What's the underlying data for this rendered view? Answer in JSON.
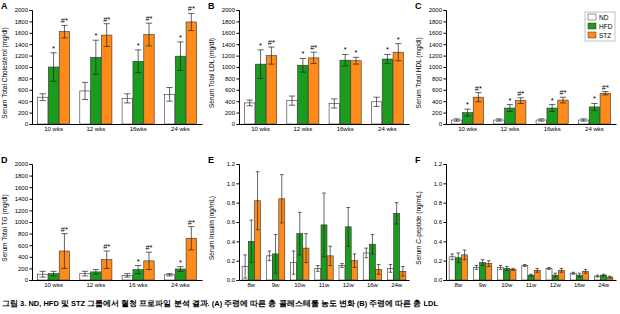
{
  "chart_data": [
    {
      "type": "bar",
      "title": "A",
      "y_label": "Serum Total Cholesterol (mg/dl)",
      "categories": [
        "10 wks",
        "12 wks",
        "16wks",
        "24 wks"
      ],
      "series": [
        {
          "color": "#ffffff",
          "values": [
            470,
            580,
            450,
            520
          ],
          "errors": [
            60,
            150,
            80,
            120
          ]
        },
        {
          "color": "#1c9c1c",
          "values": [
            1000,
            1170,
            1100,
            1190
          ],
          "errors": [
            250,
            300,
            200,
            250
          ],
          "annotations": [
            "*",
            "*",
            "*",
            "*"
          ]
        },
        {
          "color": "#ff8c1a",
          "values": [
            1620,
            1560,
            1570,
            1790
          ],
          "errors": [
            110,
            200,
            200,
            150
          ],
          "annotations": [
            "#*",
            "#*",
            "#*",
            "#*"
          ]
        }
      ],
      "ylim": [
        0,
        2000
      ],
      "yticks": [
        0,
        200,
        400,
        600,
        800,
        1000,
        1200,
        1400,
        1600,
        1800,
        2000
      ]
    },
    {
      "type": "bar",
      "title": "B",
      "y_label": "Serum Total LDL (mg/dl)",
      "categories": [
        "10 wks",
        "12 wks",
        "16wks",
        "24 wks"
      ],
      "series": [
        {
          "color": "#ffffff",
          "values": [
            370,
            410,
            360,
            390
          ],
          "errors": [
            50,
            80,
            80,
            80
          ]
        },
        {
          "color": "#1c9c1c",
          "values": [
            1050,
            1030,
            1120,
            1140
          ],
          "errors": [
            250,
            120,
            100,
            80
          ],
          "annotations": [
            "*",
            "*",
            "*",
            "*"
          ]
        },
        {
          "color": "#ff8c1a",
          "values": [
            1200,
            1160,
            1110,
            1260
          ],
          "errors": [
            150,
            100,
            60,
            150
          ],
          "annotations": [
            "#*",
            "#*",
            "*",
            "*"
          ]
        }
      ],
      "ylim": [
        0,
        2000
      ],
      "yticks": [
        0,
        200,
        400,
        600,
        800,
        1000,
        1200,
        1400,
        1600,
        1800,
        2000
      ]
    },
    {
      "type": "bar",
      "title": "C",
      "y_label": "Serum Total HDL (mg/dl)",
      "categories": [
        "10 wks",
        "12 wks",
        "16wks",
        "24 wks"
      ],
      "series": [
        {
          "name": "ND",
          "color": "#ffffff",
          "values": [
            70,
            70,
            70,
            70
          ],
          "errors": [
            20,
            20,
            20,
            20
          ]
        },
        {
          "name": "HFD",
          "color": "#1c9c1c",
          "values": [
            200,
            280,
            280,
            300
          ],
          "errors": [
            60,
            60,
            60,
            60
          ],
          "annotations": [
            "*",
            "*",
            "*",
            "*"
          ]
        },
        {
          "name": "STZ",
          "color": "#ff8c1a",
          "values": [
            470,
            410,
            420,
            540
          ],
          "errors": [
            80,
            50,
            50,
            30
          ],
          "annotations": [
            "#*",
            "#*",
            "#*",
            "#*"
          ]
        }
      ],
      "ylim": [
        0,
        2000
      ],
      "yticks": [
        0,
        200,
        400,
        600,
        800,
        1000,
        1200,
        1400,
        1600,
        1800,
        2000
      ],
      "legend": "upper right"
    },
    {
      "type": "bar",
      "title": "D",
      "y_label": "Serum Total TG (mg/dl)",
      "categories": [
        "10 wks",
        "12 wks",
        "16 wks",
        "24 wks"
      ],
      "series": [
        {
          "color": "#ffffff",
          "values": [
            100,
            110,
            80,
            90
          ],
          "errors": [
            50,
            40,
            30,
            20
          ]
        },
        {
          "color": "#1c9c1c",
          "values": [
            110,
            140,
            180,
            190
          ],
          "errors": [
            40,
            40,
            70,
            40
          ],
          "annotations": [
            null,
            null,
            "*",
            "*"
          ]
        },
        {
          "color": "#ff8c1a",
          "values": [
            500,
            350,
            330,
            720
          ],
          "errors": [
            300,
            150,
            150,
            200
          ],
          "annotations": [
            "#*",
            "#*",
            "#*",
            "#*"
          ]
        }
      ],
      "ylim": [
        0,
        2000
      ],
      "yticks": [
        0,
        200,
        400,
        600,
        800,
        1000,
        1200,
        1400,
        1600,
        1800,
        2000
      ]
    },
    {
      "type": "bar",
      "title": "E",
      "y_label": "Serum Insulin (ng/mL)",
      "categories": [
        "8w",
        "9w",
        "10w",
        "11w",
        "12w",
        "16w",
        "24w"
      ],
      "series": [
        {
          "color": "#ffffff",
          "values": [
            0.14,
            0.25,
            0.18,
            0.12,
            0.15,
            0.28,
            0.12
          ],
          "errors": [
            0.12,
            0.05,
            0.12,
            0.03,
            0.02,
            0.05,
            0.04
          ]
        },
        {
          "color": "#1c9c1c",
          "values": [
            0.4,
            0.27,
            0.48,
            0.57,
            0.55,
            0.37,
            0.69
          ],
          "errors": [
            0.22,
            0.2,
            0.22,
            0.33,
            0.2,
            0.1,
            0.11
          ]
        },
        {
          "color": "#ff8c1a",
          "values": [
            0.82,
            0.84,
            0.33,
            0.25,
            0.2,
            0.11,
            0.09
          ],
          "errors": [
            0.3,
            0.25,
            0.15,
            0.1,
            0.07,
            0.05,
            0.05
          ]
        }
      ],
      "ylim": [
        0,
        1.2
      ],
      "yticks": [
        {
          "value": 0,
          "label": "0.0"
        },
        {
          "value": 0.2,
          "label": "0.2"
        },
        {
          "value": 0.4,
          "label": "0.4"
        },
        {
          "value": 0.6,
          "label": "0.6"
        },
        {
          "value": 0.8,
          "label": "0.8"
        },
        {
          "value": 1,
          "label": "1.0"
        },
        {
          "value": 1.2,
          "label": "1.2"
        }
      ]
    },
    {
      "type": "bar",
      "title": "F",
      "y_label": "Serum C-peptide (ng/mL)",
      "categories": [
        "8w",
        "9w",
        "10w",
        "11w",
        "12w",
        "16w",
        "24w"
      ],
      "series": [
        {
          "color": "#ffffff",
          "values": [
            0.24,
            0.13,
            0.13,
            0.15,
            0.12,
            0.07,
            0.04
          ],
          "errors": [
            0.03,
            0.02,
            0.02,
            0.01,
            0.01,
            0.01,
            0.01
          ]
        },
        {
          "color": "#1c9c1c",
          "values": [
            0.23,
            0.18,
            0.12,
            0.05,
            0.05,
            0.05,
            0.05
          ],
          "errors": [
            0.05,
            0.03,
            0.02,
            0.01,
            0.02,
            0.02,
            0.01
          ]
        },
        {
          "color": "#ff8c1a",
          "values": [
            0.26,
            0.17,
            0.11,
            0.1,
            0.1,
            0.09,
            0.03
          ],
          "errors": [
            0.05,
            0.03,
            0.01,
            0.02,
            0.02,
            0.02,
            0.01
          ]
        }
      ],
      "ylim": [
        0,
        1.2
      ],
      "yticks": [
        {
          "value": 0,
          "label": "0.0"
        },
        {
          "value": 0.2,
          "label": "0.2"
        },
        {
          "value": 0.4,
          "label": "0.4"
        },
        {
          "value": 0.6,
          "label": "0.6"
        },
        {
          "value": 0.8,
          "label": "0.8"
        },
        {
          "value": 1,
          "label": "1.0"
        },
        {
          "value": 1.2,
          "label": "1.2"
        }
      ]
    }
  ],
  "caption": "그림 3. ND, HFD 및 STZ 그룹에서 혈청 프로파일 분석 결과. (A) 주령에 따른 총 콜레스테롤 농도 변화 (B) 주령에 따른 총 LDL"
}
